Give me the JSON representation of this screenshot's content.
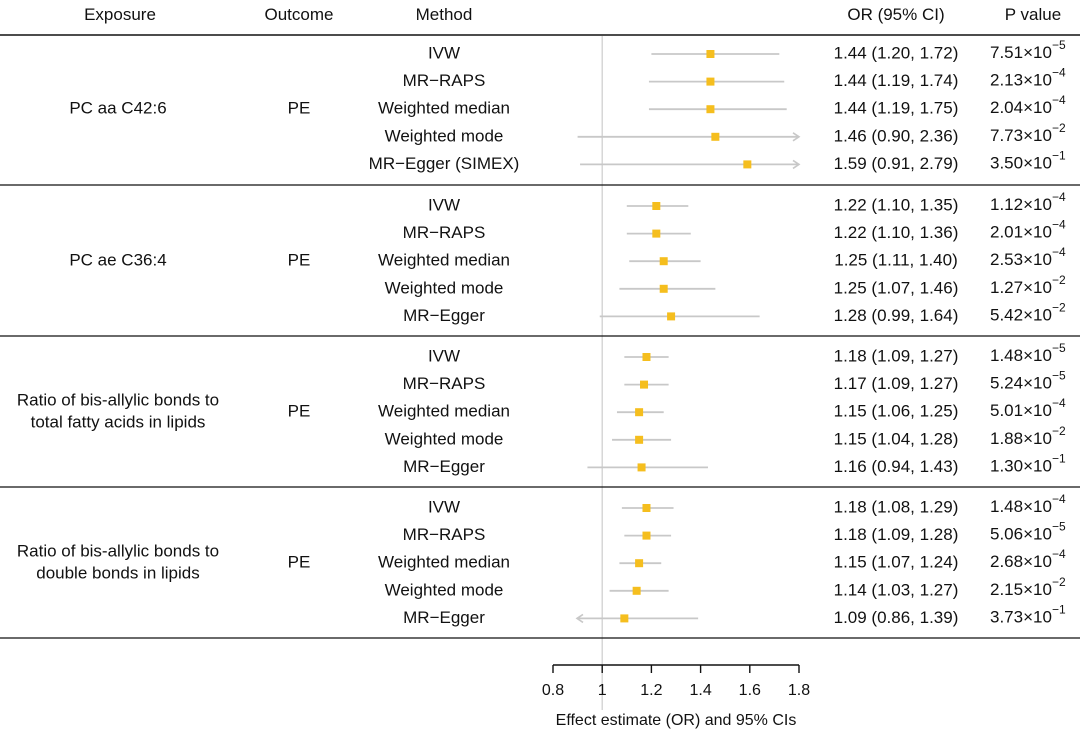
{
  "chart_data": {
    "type": "forest",
    "headers": {
      "exposure": "Exposure",
      "outcome": "Outcome",
      "method": "Method",
      "or_ci": "OR (95% CI)",
      "pvalue": "P value"
    },
    "xlabel": "Effect estimate (OR) and 95% CIs",
    "xlim": [
      0.8,
      1.8
    ],
    "xticks": [
      0.8,
      1,
      1.2,
      1.4,
      1.6,
      1.8
    ],
    "xtick_labels": [
      "0.8",
      "1",
      "1.2",
      "1.4",
      "1.6",
      "1.8"
    ],
    "reference_line": 1,
    "point_color": "#F5BE1E",
    "ci_color": "#C8C8C8",
    "groups": [
      {
        "exposure": [
          "PC aa C42:6"
        ],
        "outcome": "PE",
        "rows": [
          {
            "method": "IVW",
            "or": 1.44,
            "lo": 1.2,
            "hi": 1.72,
            "or_ci": "1.44 (1.20, 1.72)",
            "p_base": "7.51×10",
            "p_exp": "−5"
          },
          {
            "method": "MR−RAPS",
            "or": 1.44,
            "lo": 1.19,
            "hi": 1.74,
            "or_ci": "1.44 (1.19, 1.74)",
            "p_base": "2.13×10",
            "p_exp": "−4"
          },
          {
            "method": "Weighted median",
            "or": 1.44,
            "lo": 1.19,
            "hi": 1.75,
            "or_ci": "1.44 (1.19, 1.75)",
            "p_base": "2.04×10",
            "p_exp": "−4"
          },
          {
            "method": "Weighted mode",
            "or": 1.46,
            "lo": 0.9,
            "hi": 2.36,
            "or_ci": "1.46 (0.90, 2.36)",
            "p_base": "7.73×10",
            "p_exp": "−2"
          },
          {
            "method": "MR−Egger (SIMEX)",
            "or": 1.59,
            "lo": 0.91,
            "hi": 2.79,
            "or_ci": "1.59 (0.91, 2.79)",
            "p_base": "3.50×10",
            "p_exp": "−1"
          }
        ]
      },
      {
        "exposure": [
          "PC ae C36:4"
        ],
        "outcome": "PE",
        "rows": [
          {
            "method": "IVW",
            "or": 1.22,
            "lo": 1.1,
            "hi": 1.35,
            "or_ci": "1.22 (1.10, 1.35)",
            "p_base": "1.12×10",
            "p_exp": "−4"
          },
          {
            "method": "MR−RAPS",
            "or": 1.22,
            "lo": 1.1,
            "hi": 1.36,
            "or_ci": "1.22 (1.10, 1.36)",
            "p_base": "2.01×10",
            "p_exp": "−4"
          },
          {
            "method": "Weighted median",
            "or": 1.25,
            "lo": 1.11,
            "hi": 1.4,
            "or_ci": "1.25 (1.11, 1.40)",
            "p_base": "2.53×10",
            "p_exp": "−4"
          },
          {
            "method": "Weighted mode",
            "or": 1.25,
            "lo": 1.07,
            "hi": 1.46,
            "or_ci": "1.25 (1.07, 1.46)",
            "p_base": "1.27×10",
            "p_exp": "−2"
          },
          {
            "method": "MR−Egger",
            "or": 1.28,
            "lo": 0.99,
            "hi": 1.64,
            "or_ci": "1.28 (0.99, 1.64)",
            "p_base": "5.42×10",
            "p_exp": "−2"
          }
        ]
      },
      {
        "exposure": [
          "Ratio of bis-allylic bonds to",
          "total fatty acids in lipids"
        ],
        "outcome": "PE",
        "rows": [
          {
            "method": "IVW",
            "or": 1.18,
            "lo": 1.09,
            "hi": 1.27,
            "or_ci": "1.18 (1.09, 1.27)",
            "p_base": "1.48×10",
            "p_exp": "−5"
          },
          {
            "method": "MR−RAPS",
            "or": 1.17,
            "lo": 1.09,
            "hi": 1.27,
            "or_ci": "1.17 (1.09, 1.27)",
            "p_base": "5.24×10",
            "p_exp": "−5"
          },
          {
            "method": "Weighted median",
            "or": 1.15,
            "lo": 1.06,
            "hi": 1.25,
            "or_ci": "1.15 (1.06, 1.25)",
            "p_base": "5.01×10",
            "p_exp": "−4"
          },
          {
            "method": "Weighted mode",
            "or": 1.15,
            "lo": 1.04,
            "hi": 1.28,
            "or_ci": "1.15 (1.04, 1.28)",
            "p_base": "1.88×10",
            "p_exp": "−2"
          },
          {
            "method": "MR−Egger",
            "or": 1.16,
            "lo": 0.94,
            "hi": 1.43,
            "or_ci": "1.16 (0.94, 1.43)",
            "p_base": "1.30×10",
            "p_exp": "−1"
          }
        ]
      },
      {
        "exposure": [
          "Ratio of bis-allylic bonds to",
          "double bonds in lipids"
        ],
        "outcome": "PE",
        "rows": [
          {
            "method": "IVW",
            "or": 1.18,
            "lo": 1.08,
            "hi": 1.29,
            "or_ci": "1.18 (1.08, 1.29)",
            "p_base": "1.48×10",
            "p_exp": "−4"
          },
          {
            "method": "MR−RAPS",
            "or": 1.18,
            "lo": 1.09,
            "hi": 1.28,
            "or_ci": "1.18 (1.09, 1.28)",
            "p_base": "5.06×10",
            "p_exp": "−5"
          },
          {
            "method": "Weighted median",
            "or": 1.15,
            "lo": 1.07,
            "hi": 1.24,
            "or_ci": "1.15 (1.07, 1.24)",
            "p_base": "2.68×10",
            "p_exp": "−4"
          },
          {
            "method": "Weighted mode",
            "or": 1.14,
            "lo": 1.03,
            "hi": 1.27,
            "or_ci": "1.14 (1.03, 1.27)",
            "p_base": "2.15×10",
            "p_exp": "−2"
          },
          {
            "method": "MR−Egger",
            "or": 1.09,
            "lo": 0.86,
            "hi": 1.39,
            "or_ci": "1.09 (0.86, 1.39)",
            "p_base": "3.73×10",
            "p_exp": "−1"
          }
        ]
      }
    ]
  }
}
